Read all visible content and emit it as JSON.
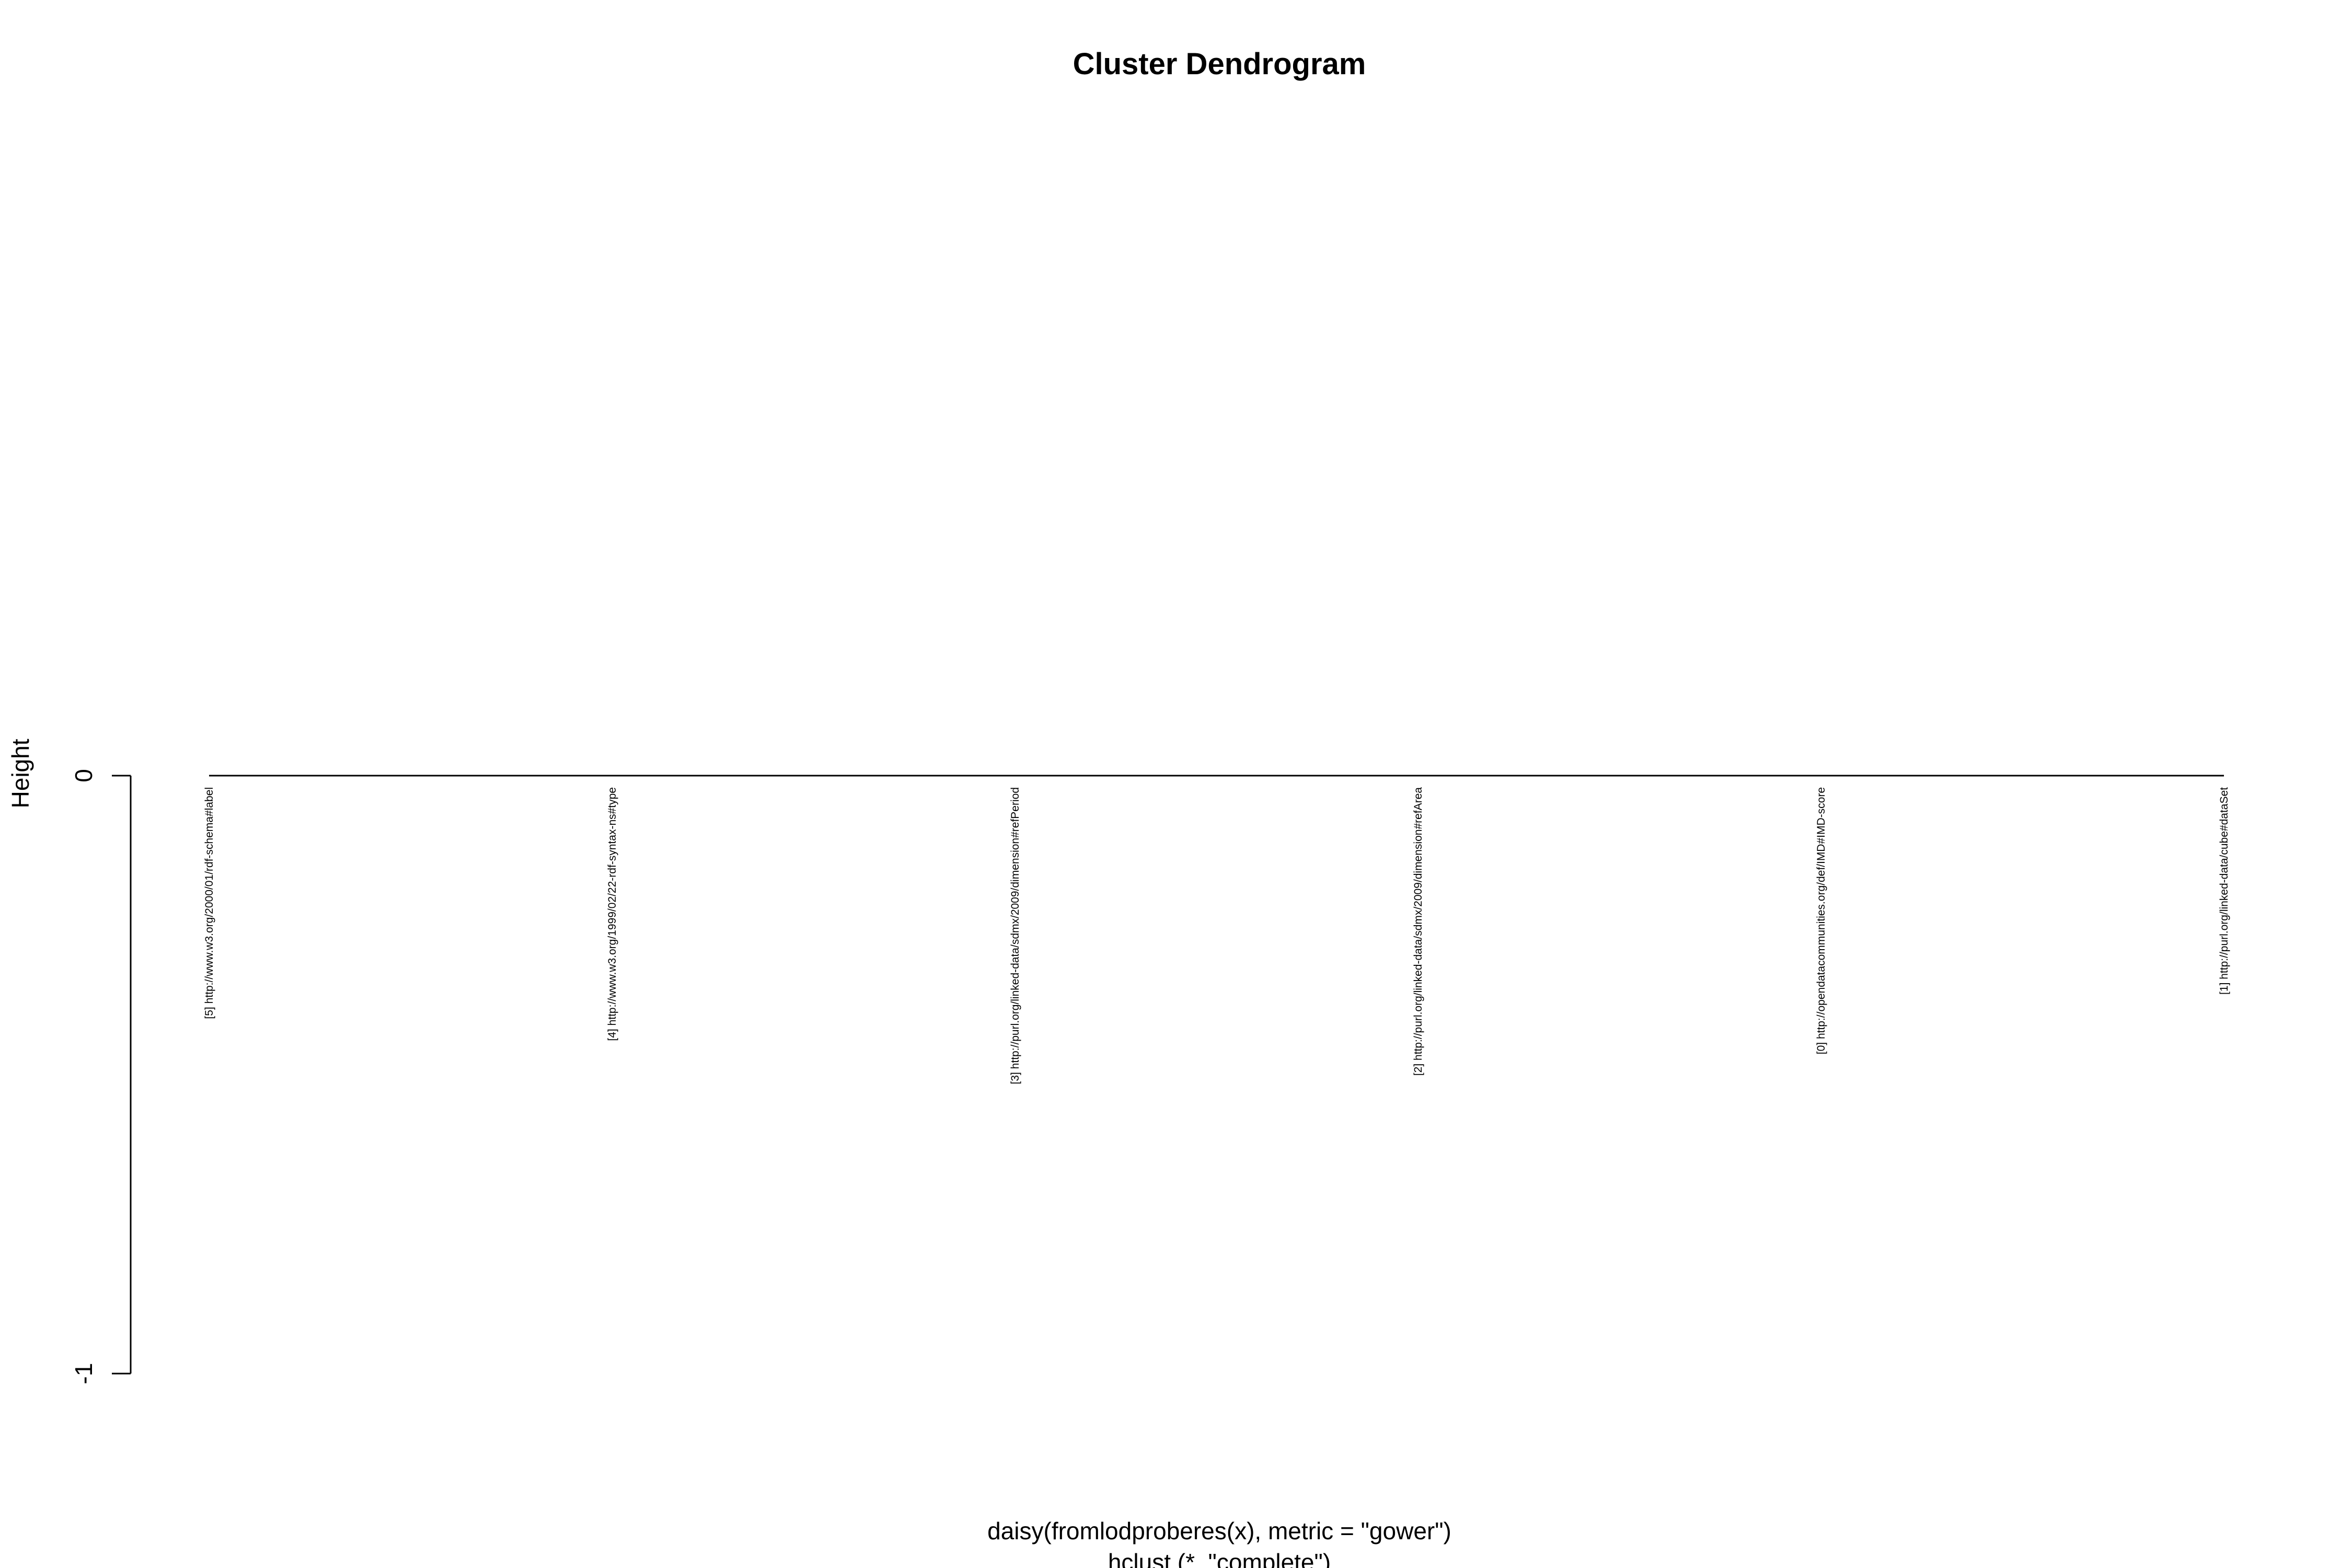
{
  "chart_data": {
    "type": "dendrogram",
    "title": "Cluster Dendrogram",
    "ylabel": "Height",
    "xlabel": "daisy(fromlodproberes(x), metric = \"gower\")",
    "sublabel": "hclust (*, \"complete\")",
    "ylim": [
      -1,
      0
    ],
    "yticks": [
      0,
      -1
    ],
    "merge_height": 0,
    "leaves": [
      "[5] http://www.w3.org/2000/01/rdf-schema#label",
      "[4] http://www.w3.org/1999/02/22-rdf-syntax-ns#type",
      "[3] http://purl.org/linked-data/sdmx/2009/dimension#refPeriod",
      "[2] http://purl.org/linked-data/sdmx/2009/dimension#refArea",
      "[0] http://opendatacommunities.org/def/IMD#IMD-score",
      "[1] http://purl.org/linked-data/cube#dataSet"
    ]
  }
}
